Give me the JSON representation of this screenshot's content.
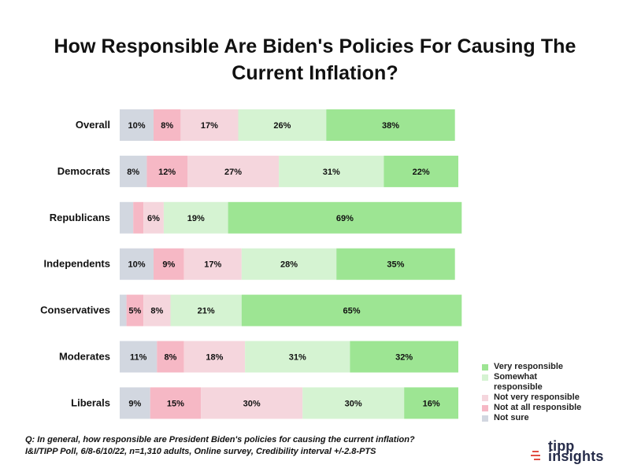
{
  "chart_data": {
    "type": "bar",
    "orientation": "horizontal",
    "stacked": true,
    "title": "How Responsible Are Biden's Policies For Causing The Current Inflation?",
    "categories": [
      "Overall",
      "Democrats",
      "Republicans",
      "Independents",
      "Conservatives",
      "Moderates",
      "Liberals"
    ],
    "series": [
      {
        "name": "Not sure",
        "color": "#d2d7e0",
        "values": [
          10,
          8,
          4,
          10,
          2,
          11,
          9
        ],
        "labels": [
          "10%",
          "8%",
          "",
          "10%",
          "",
          "11%",
          "9%"
        ]
      },
      {
        "name": "Not at all responsible",
        "color": "#f6b8c5",
        "values": [
          8,
          12,
          3,
          9,
          5,
          8,
          15
        ],
        "labels": [
          "8%",
          "12%",
          "",
          "9%",
          "5%",
          "8%",
          "15%"
        ]
      },
      {
        "name": "Not very responsible",
        "color": "#f5d6dd",
        "values": [
          17,
          27,
          6,
          17,
          8,
          18,
          30
        ],
        "labels": [
          "17%",
          "27%",
          "6%",
          "17%",
          "8%",
          "18%",
          "30%"
        ]
      },
      {
        "name": "Somewhat responsible",
        "color": "#d5f3d2",
        "values": [
          26,
          31,
          19,
          28,
          21,
          31,
          30
        ],
        "labels": [
          "26%",
          "31%",
          "19%",
          "28%",
          "21%",
          "31%",
          "30%"
        ]
      },
      {
        "name": "Very responsible",
        "color": "#9de593",
        "values": [
          38,
          22,
          69,
          35,
          65,
          32,
          16
        ],
        "labels": [
          "38%",
          "22%",
          "69%",
          "35%",
          "65%",
          "32%",
          "16%"
        ]
      }
    ],
    "legend": [
      {
        "label": "Very responsible",
        "color": "#9de593"
      },
      {
        "label": "Somewhat responsible",
        "color": "#d5f3d2"
      },
      {
        "label": "Not very responsible",
        "color": "#f5d6dd"
      },
      {
        "label": "Not at all responsible",
        "color": "#f6b8c5"
      },
      {
        "label": "Not sure",
        "color": "#d2d7e0"
      }
    ],
    "xlabel": "",
    "ylabel": "",
    "xlim": [
      0,
      100
    ],
    "grid": false,
    "legend_position": "bottom-right"
  },
  "notes": {
    "question": "Q: In general, how responsible are President Biden's policies for causing the current inflation?",
    "source": "I&I/TIPP Poll, 6/8-6/10/22, n=1,310 adults, Online survey, Credibility interval +/-2.8-PTS"
  },
  "brand": {
    "logo_top": "tipp",
    "logo_bottom": "insights",
    "mark_color": "#e14f45"
  }
}
